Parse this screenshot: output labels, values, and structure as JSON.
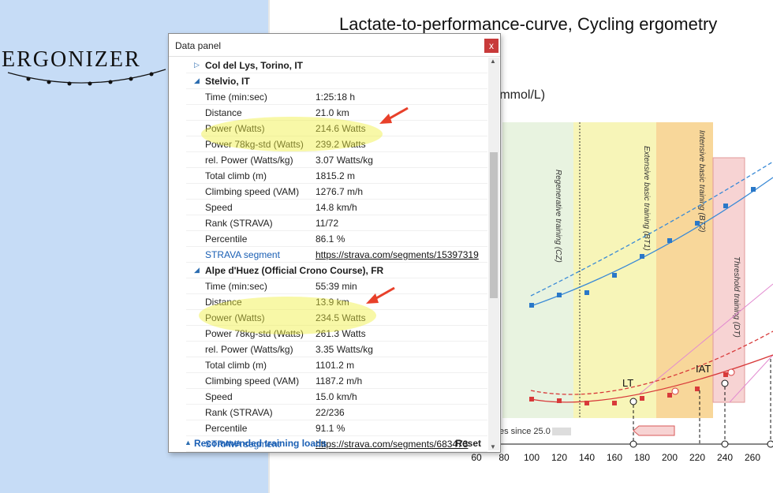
{
  "logo": {
    "text": "ERGONIZER"
  },
  "chart": {
    "title": "Lactate-to-performance-curve, Cycling ergometry",
    "ylabel_fragment": "(mmol/L)",
    "sessions_note": "es since 25.0"
  },
  "chart_data": {
    "type": "line",
    "x_ticks": [
      "60",
      "80",
      "100",
      "120",
      "140",
      "160",
      "180",
      "200",
      "220",
      "240",
      "260"
    ],
    "zones": [
      "Regenerative training (CZ)",
      "Extensive basic training (BT1)",
      "Intensive basic training (BT2)",
      "Threshold training (DT)"
    ],
    "markers": [
      "LT",
      "IAT"
    ]
  },
  "panel": {
    "title": "Data panel",
    "close": "x",
    "groups": [
      {
        "name": "Col del Lys, Torino, IT",
        "expanded": false,
        "rows": []
      },
      {
        "name": "Stelvio, IT",
        "expanded": true,
        "rows": [
          {
            "k": "Time (min:sec)",
            "v": "1:25:18 h"
          },
          {
            "k": "Distance",
            "v": "21.0 km"
          },
          {
            "k": "Power (Watts)",
            "v": "214.6 Watts"
          },
          {
            "k": "Power 78kg-std (Watts)",
            "v": "239.2 Watts"
          },
          {
            "k": "rel. Power (Watts/kg)",
            "v": "3.07 Watts/kg"
          },
          {
            "k": "Total climb (m)",
            "v": "1815.2 m"
          },
          {
            "k": "Climbing speed (VAM)",
            "v": "1276.7 m/h"
          },
          {
            "k": "Speed",
            "v": "14.8 km/h"
          },
          {
            "k": "Rank (STRAVA)",
            "v": "11/72"
          },
          {
            "k": "Percentile",
            "v": "86.1 %"
          },
          {
            "k": "STRAVA segment",
            "v": "https://strava.com/segments/15397319",
            "link": true
          }
        ]
      },
      {
        "name": "Alpe d'Huez (Official Crono Course), FR",
        "expanded": true,
        "rows": [
          {
            "k": "Time (min:sec)",
            "v": "55:39 min"
          },
          {
            "k": "Distance",
            "v": "13.9 km"
          },
          {
            "k": "Power (Watts)",
            "v": "234.5 Watts"
          },
          {
            "k": "Power 78kg-std (Watts)",
            "v": "261.3 Watts"
          },
          {
            "k": "rel. Power (Watts/kg)",
            "v": "3.35 Watts/kg"
          },
          {
            "k": "Total climb (m)",
            "v": "1101.2 m"
          },
          {
            "k": "Climbing speed (VAM)",
            "v": "1187.2 m/h"
          },
          {
            "k": "Speed",
            "v": "15.0 km/h"
          },
          {
            "k": "Rank (STRAVA)",
            "v": "22/236"
          },
          {
            "k": "Percentile",
            "v": "91.1 %"
          },
          {
            "k": "STRAVA segment",
            "v": "https://strava.com/segments/683473",
            "link": true
          }
        ]
      }
    ],
    "footer": {
      "label": "Recommended training loads",
      "reset": "Reset"
    }
  }
}
